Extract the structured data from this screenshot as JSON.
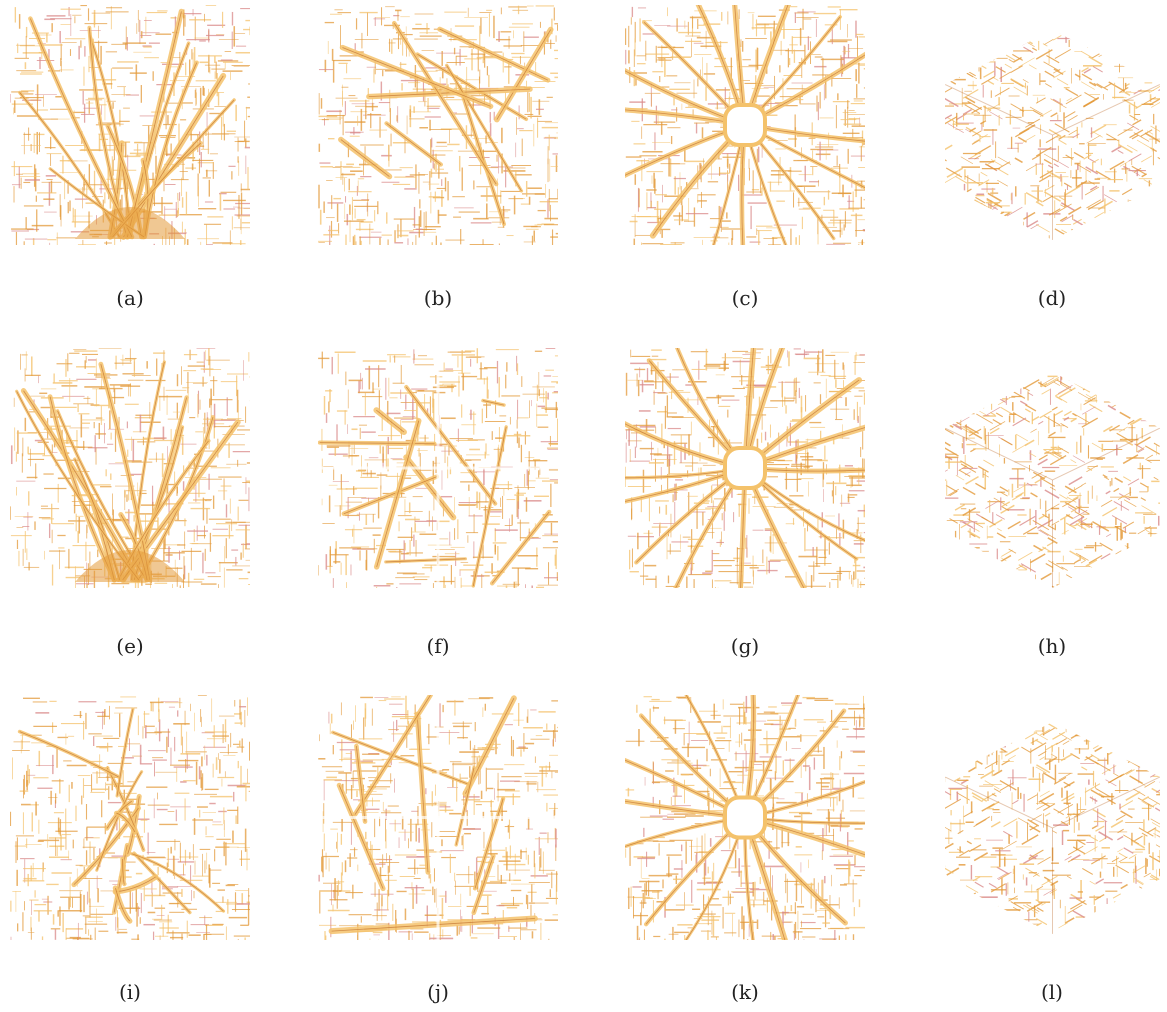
{
  "figure": {
    "panels": [
      {
        "label": "(a)",
        "view": "side",
        "pattern": "channel-bottom"
      },
      {
        "label": "(b)",
        "view": "top",
        "pattern": "dense"
      },
      {
        "label": "(c)",
        "view": "top",
        "pattern": "hole-center"
      },
      {
        "label": "(d)",
        "view": "iso",
        "pattern": "cube"
      },
      {
        "label": "(e)",
        "view": "side",
        "pattern": "channel-bottom"
      },
      {
        "label": "(f)",
        "view": "top",
        "pattern": "dense-cross"
      },
      {
        "label": "(g)",
        "view": "top",
        "pattern": "hole-center"
      },
      {
        "label": "(h)",
        "view": "iso",
        "pattern": "cube"
      },
      {
        "label": "(i)",
        "view": "side",
        "pattern": "channel-center"
      },
      {
        "label": "(j)",
        "view": "top",
        "pattern": "dense-cross"
      },
      {
        "label": "(k)",
        "view": "top",
        "pattern": "hole-center"
      },
      {
        "label": "(l)",
        "view": "iso",
        "pattern": "cube"
      }
    ]
  },
  "colors": {
    "branch_light": "#f4c26b",
    "branch_mid": "#e39a3a",
    "branch_dark": "#b8611f",
    "tip": "#d98a8a"
  }
}
